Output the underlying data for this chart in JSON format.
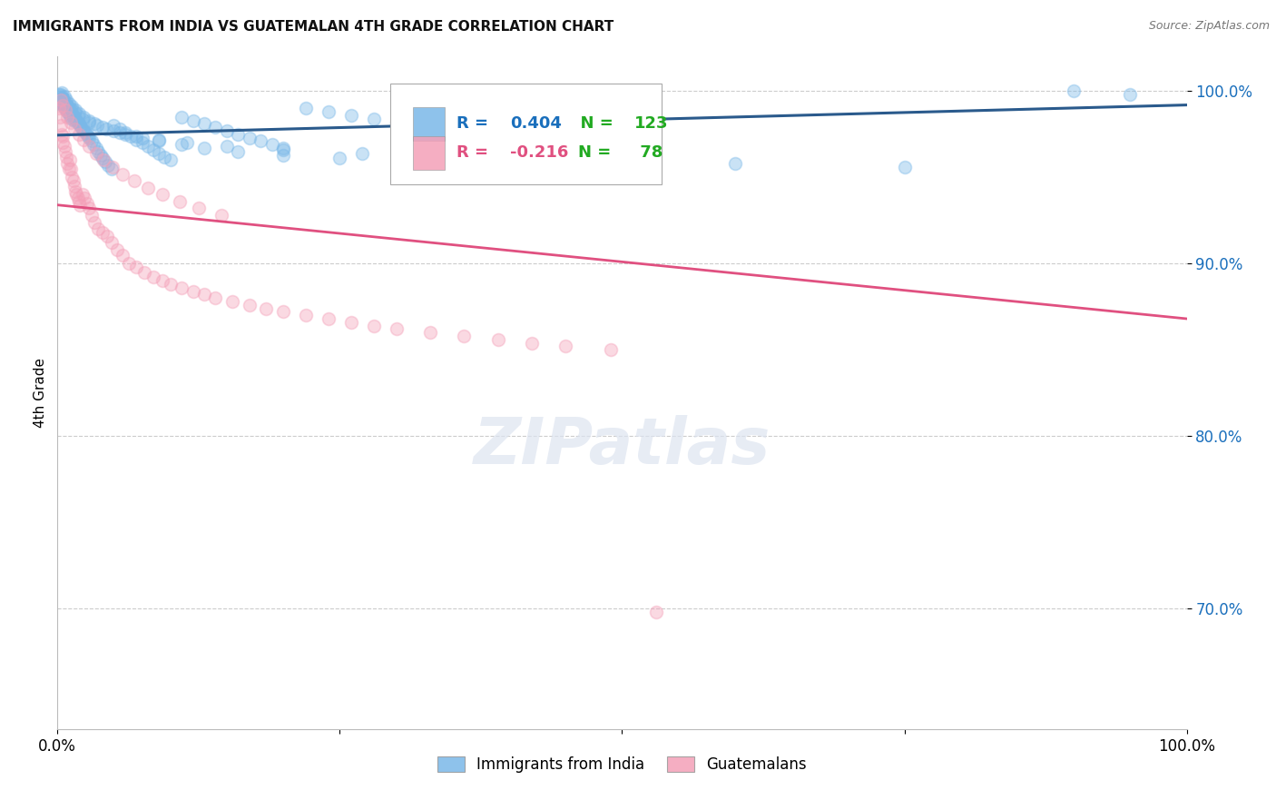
{
  "title": "IMMIGRANTS FROM INDIA VS GUATEMALAN 4TH GRADE CORRELATION CHART",
  "source": "Source: ZipAtlas.com",
  "ylabel": "4th Grade",
  "xlim": [
    0.0,
    1.0
  ],
  "ylim": [
    0.63,
    1.02
  ],
  "yticks": [
    0.7,
    0.8,
    0.9,
    1.0
  ],
  "ytick_labels": [
    "70.0%",
    "80.0%",
    "90.0%",
    "100.0%"
  ],
  "blue_R": 0.404,
  "blue_N": 123,
  "pink_R": -0.216,
  "pink_N": 78,
  "blue_color": "#7ab8e8",
  "pink_color": "#f4a0b8",
  "blue_line_color": "#2a5a8c",
  "pink_line_color": "#e05080",
  "legend_R_color": "#1a6fbc",
  "legend_N_color": "#22aa22",
  "background_color": "#ffffff",
  "grid_color": "#cccccc",
  "blue_scatter_x": [
    0.001,
    0.002,
    0.002,
    0.003,
    0.003,
    0.003,
    0.004,
    0.004,
    0.005,
    0.005,
    0.005,
    0.006,
    0.006,
    0.007,
    0.007,
    0.008,
    0.008,
    0.009,
    0.009,
    0.01,
    0.01,
    0.011,
    0.011,
    0.012,
    0.012,
    0.013,
    0.013,
    0.014,
    0.015,
    0.015,
    0.016,
    0.017,
    0.018,
    0.019,
    0.02,
    0.021,
    0.022,
    0.023,
    0.025,
    0.026,
    0.027,
    0.028,
    0.03,
    0.032,
    0.034,
    0.036,
    0.038,
    0.04,
    0.042,
    0.045,
    0.048,
    0.05,
    0.055,
    0.06,
    0.065,
    0.07,
    0.075,
    0.08,
    0.085,
    0.09,
    0.095,
    0.1,
    0.11,
    0.12,
    0.13,
    0.14,
    0.15,
    0.16,
    0.17,
    0.18,
    0.19,
    0.2,
    0.22,
    0.24,
    0.26,
    0.28,
    0.3,
    0.32,
    0.35,
    0.38,
    0.004,
    0.006,
    0.008,
    0.01,
    0.013,
    0.016,
    0.019,
    0.023,
    0.028,
    0.033,
    0.04,
    0.05,
    0.06,
    0.075,
    0.09,
    0.11,
    0.13,
    0.16,
    0.2,
    0.25,
    0.003,
    0.005,
    0.007,
    0.009,
    0.012,
    0.015,
    0.018,
    0.022,
    0.028,
    0.035,
    0.043,
    0.055,
    0.07,
    0.09,
    0.115,
    0.15,
    0.2,
    0.27,
    0.35,
    0.45,
    0.6,
    0.75,
    0.9,
    0.95
  ],
  "blue_scatter_y": [
    0.998,
    0.997,
    0.995,
    0.996,
    0.994,
    0.993,
    0.995,
    0.993,
    0.996,
    0.994,
    0.992,
    0.993,
    0.991,
    0.992,
    0.99,
    0.991,
    0.989,
    0.99,
    0.988,
    0.99,
    0.987,
    0.988,
    0.986,
    0.988,
    0.985,
    0.987,
    0.984,
    0.986,
    0.985,
    0.983,
    0.984,
    0.983,
    0.982,
    0.981,
    0.98,
    0.979,
    0.978,
    0.977,
    0.976,
    0.975,
    0.974,
    0.973,
    0.971,
    0.969,
    0.967,
    0.965,
    0.963,
    0.961,
    0.959,
    0.957,
    0.955,
    0.98,
    0.978,
    0.976,
    0.974,
    0.972,
    0.97,
    0.968,
    0.966,
    0.964,
    0.962,
    0.96,
    0.985,
    0.983,
    0.981,
    0.979,
    0.977,
    0.975,
    0.973,
    0.971,
    0.969,
    0.967,
    0.99,
    0.988,
    0.986,
    0.984,
    0.982,
    0.98,
    0.978,
    0.976,
    0.999,
    0.997,
    0.995,
    0.993,
    0.991,
    0.989,
    0.987,
    0.985,
    0.983,
    0.981,
    0.979,
    0.977,
    0.975,
    0.973,
    0.971,
    0.969,
    0.967,
    0.965,
    0.963,
    0.961,
    0.998,
    0.996,
    0.994,
    0.992,
    0.99,
    0.988,
    0.986,
    0.984,
    0.982,
    0.98,
    0.978,
    0.976,
    0.974,
    0.972,
    0.97,
    0.968,
    0.966,
    0.964,
    0.962,
    0.96,
    0.958,
    0.956,
    1.0,
    0.998
  ],
  "pink_scatter_x": [
    0.001,
    0.002,
    0.003,
    0.004,
    0.005,
    0.005,
    0.006,
    0.007,
    0.008,
    0.009,
    0.01,
    0.011,
    0.012,
    0.013,
    0.014,
    0.015,
    0.016,
    0.017,
    0.018,
    0.019,
    0.02,
    0.022,
    0.024,
    0.026,
    0.028,
    0.03,
    0.033,
    0.036,
    0.04,
    0.044,
    0.048,
    0.053,
    0.058,
    0.063,
    0.07,
    0.077,
    0.085,
    0.093,
    0.1,
    0.11,
    0.12,
    0.13,
    0.14,
    0.155,
    0.17,
    0.185,
    0.2,
    0.22,
    0.24,
    0.26,
    0.28,
    0.3,
    0.33,
    0.36,
    0.39,
    0.42,
    0.45,
    0.49,
    0.003,
    0.005,
    0.007,
    0.009,
    0.012,
    0.015,
    0.019,
    0.023,
    0.028,
    0.034,
    0.041,
    0.049,
    0.058,
    0.068,
    0.08,
    0.093,
    0.108,
    0.125,
    0.145,
    0.53
  ],
  "pink_scatter_y": [
    0.99,
    0.985,
    0.98,
    0.975,
    0.974,
    0.97,
    0.968,
    0.965,
    0.962,
    0.958,
    0.955,
    0.96,
    0.955,
    0.95,
    0.948,
    0.945,
    0.942,
    0.94,
    0.938,
    0.936,
    0.934,
    0.94,
    0.938,
    0.935,
    0.932,
    0.928,
    0.924,
    0.92,
    0.918,
    0.916,
    0.912,
    0.908,
    0.905,
    0.9,
    0.898,
    0.895,
    0.892,
    0.89,
    0.888,
    0.886,
    0.884,
    0.882,
    0.88,
    0.878,
    0.876,
    0.874,
    0.872,
    0.87,
    0.868,
    0.866,
    0.864,
    0.862,
    0.86,
    0.858,
    0.856,
    0.854,
    0.852,
    0.85,
    0.995,
    0.992,
    0.989,
    0.985,
    0.982,
    0.978,
    0.975,
    0.972,
    0.968,
    0.964,
    0.96,
    0.956,
    0.952,
    0.948,
    0.944,
    0.94,
    0.936,
    0.932,
    0.928,
    0.698
  ],
  "blue_trendline_x": [
    0.0,
    1.0
  ],
  "blue_trendline_y": [
    0.9745,
    0.992
  ],
  "pink_trendline_x": [
    0.0,
    1.0
  ],
  "pink_trendline_y": [
    0.934,
    0.868
  ],
  "marker_size": 100,
  "marker_alpha": 0.4,
  "marker_lw": 1.2
}
